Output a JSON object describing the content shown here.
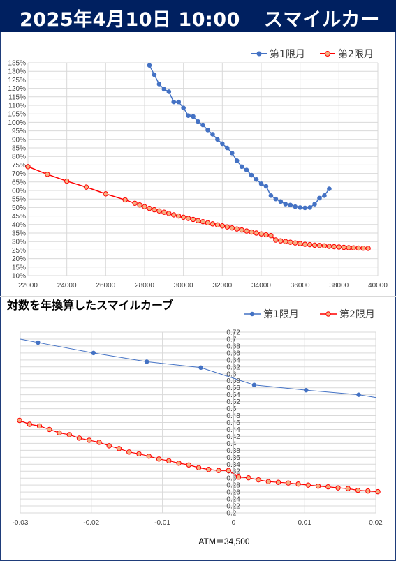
{
  "header": {
    "date": "2025年4月10日 10:00",
    "title": "スマイルカーブ"
  },
  "colors": {
    "header_bg": "#002060",
    "series1": "#4472C4",
    "series2": "#FF0000"
  },
  "chart_data": [
    {
      "type": "scatter",
      "title": "",
      "xlim": [
        22000,
        40000
      ],
      "ylim": [
        0.1,
        1.35
      ],
      "x_ticks": [
        "22000",
        "24000",
        "26000",
        "28000",
        "30000",
        "32000",
        "34000",
        "36000",
        "38000",
        "40000"
      ],
      "y_ticks": [
        "10%",
        "15%",
        "20%",
        "25%",
        "30%",
        "35%",
        "40%",
        "45%",
        "50%",
        "55%",
        "60%",
        "65%",
        "70%",
        "75%",
        "80%",
        "85%",
        "90%",
        "95%",
        "100%",
        "105%",
        "110%",
        "115%",
        "120%",
        "125%",
        "130%",
        "135%"
      ],
      "legend_position": "top-right",
      "grid": true,
      "series": [
        {
          "name": "第1限月",
          "x": [
            28250,
            28500,
            28750,
            29000,
            29250,
            29500,
            29750,
            30000,
            30250,
            30500,
            30750,
            31000,
            31250,
            31500,
            31750,
            32000,
            32250,
            32500,
            32750,
            33000,
            33250,
            33500,
            33750,
            34000,
            34250,
            34500,
            34750,
            35000,
            35250,
            35500,
            35750,
            36000,
            36250,
            36500,
            36750,
            37000,
            37250,
            37500
          ],
          "y": [
            1.335,
            1.28,
            1.225,
            1.195,
            1.18,
            1.12,
            1.12,
            1.085,
            1.04,
            1.035,
            1.005,
            0.985,
            0.955,
            0.93,
            0.9,
            0.875,
            0.85,
            0.82,
            0.775,
            0.74,
            0.72,
            0.69,
            0.665,
            0.64,
            0.625,
            0.57,
            0.55,
            0.535,
            0.52,
            0.515,
            0.505,
            0.5,
            0.498,
            0.5,
            0.52,
            0.555,
            0.57,
            0.61
          ]
        },
        {
          "name": "第2限月",
          "x": [
            22000,
            23000,
            24000,
            25000,
            26000,
            27000,
            27500,
            27750,
            28000,
            28250,
            28500,
            28750,
            29000,
            29250,
            29500,
            29750,
            30000,
            30250,
            30500,
            30750,
            31000,
            31250,
            31500,
            31750,
            32000,
            32250,
            32500,
            32750,
            33000,
            33250,
            33500,
            33750,
            34000,
            34250,
            34500,
            34750,
            35000,
            35250,
            35500,
            35750,
            36000,
            36250,
            36500,
            36750,
            37000,
            37250,
            37500,
            37750,
            38000,
            38250,
            38500,
            38750,
            39000,
            39250,
            39500
          ],
          "y": [
            0.74,
            0.695,
            0.655,
            0.62,
            0.58,
            0.545,
            0.525,
            0.515,
            0.505,
            0.495,
            0.487,
            0.48,
            0.472,
            0.465,
            0.457,
            0.45,
            0.443,
            0.436,
            0.43,
            0.423,
            0.417,
            0.41,
            0.404,
            0.398,
            0.392,
            0.386,
            0.38,
            0.374,
            0.368,
            0.362,
            0.356,
            0.35,
            0.345,
            0.34,
            0.335,
            0.309,
            0.304,
            0.3,
            0.296,
            0.292,
            0.288,
            0.284,
            0.282,
            0.279,
            0.277,
            0.275,
            0.272,
            0.27,
            0.268,
            0.266,
            0.264,
            0.263,
            0.262,
            0.261,
            0.26
          ]
        }
      ]
    },
    {
      "type": "line",
      "title": "対数を年換算したスマイルカーブ",
      "xlim": [
        -0.03,
        0.02
      ],
      "ylim": [
        0.2,
        0.72
      ],
      "x_ticks": [
        "-0.03",
        "-0.02",
        "-0.01",
        "0",
        "0.01",
        "0.02"
      ],
      "y_ticks": [
        "0.2",
        "0.22",
        "0.24",
        "0.26",
        "0.28",
        "0.3",
        "0.32",
        "0.34",
        "0.36",
        "0.38",
        "0.4",
        "0.42",
        "0.44",
        "0.46",
        "0.48",
        "0.5",
        "0.52",
        "0.54",
        "0.56",
        "0.58",
        "0.6",
        "0.62",
        "0.64",
        "0.66",
        "0.68",
        "0.7",
        "0.72"
      ],
      "legend_position": "top-right",
      "grid": true,
      "note": "ATM＝34,500",
      "series": [
        {
          "name": "第1限月",
          "x": [
            -0.03,
            -0.0275,
            -0.0197,
            -0.0122,
            -0.0046,
            0.0029,
            0.0102,
            0.0176,
            0.02
          ],
          "y": [
            0.7,
            0.69,
            0.66,
            0.635,
            0.618,
            0.568,
            0.553,
            0.54,
            0.532
          ]
        },
        {
          "name": "第2限月",
          "x": [
            -0.0301,
            -0.0287,
            -0.0273,
            -0.0259,
            -0.0245,
            -0.0231,
            -0.0217,
            -0.0203,
            -0.0189,
            -0.0175,
            -0.0161,
            -0.0147,
            -0.0133,
            -0.0119,
            -0.0105,
            -0.0091,
            -0.0077,
            -0.0063,
            -0.0049,
            -0.0035,
            -0.0021,
            -0.0007,
            0.0007,
            0.0021,
            0.0035,
            0.0049,
            0.0063,
            0.0077,
            0.0091,
            0.0105,
            0.0119,
            0.0133,
            0.0147,
            0.0161,
            0.0175,
            0.0189,
            0.0203
          ],
          "y": [
            0.466,
            0.455,
            0.45,
            0.44,
            0.43,
            0.425,
            0.415,
            0.409,
            0.403,
            0.393,
            0.385,
            0.375,
            0.37,
            0.363,
            0.355,
            0.35,
            0.343,
            0.338,
            0.33,
            0.325,
            0.322,
            0.322,
            0.303,
            0.301,
            0.295,
            0.29,
            0.288,
            0.286,
            0.283,
            0.28,
            0.277,
            0.275,
            0.272,
            0.27,
            0.265,
            0.263,
            0.261
          ]
        }
      ]
    }
  ]
}
